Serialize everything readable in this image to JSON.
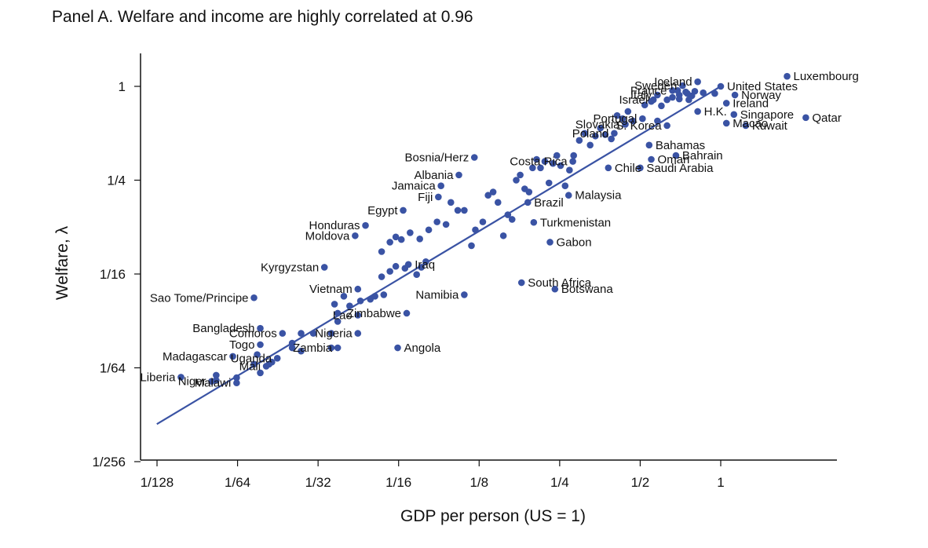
{
  "figure_title": "Panel A. Welfare and income are highly correlated at 0.96",
  "colors": {
    "points": "#3a53a4",
    "fit_line": "#3a53a4",
    "axis": "#111111"
  },
  "chart_data": {
    "type": "scatter",
    "title": "Panel A. Welfare and income are highly correlated at 0.96",
    "xlabel": "GDP per person (US = 1)",
    "ylabel": "Welfare, λ",
    "x_scale": "log2",
    "y_scale": "log2",
    "xlim": [
      0.0069,
      2.6
    ],
    "ylim": [
      0.0039,
      1.5
    ],
    "x_ticks": [
      {
        "value": 0.0078125,
        "label": "1/128"
      },
      {
        "value": 0.015625,
        "label": "1/64"
      },
      {
        "value": 0.03125,
        "label": "1/32"
      },
      {
        "value": 0.0625,
        "label": "1/16"
      },
      {
        "value": 0.125,
        "label": "1/8"
      },
      {
        "value": 0.25,
        "label": "1/4"
      },
      {
        "value": 0.5,
        "label": "1/2"
      },
      {
        "value": 1,
        "label": "1"
      }
    ],
    "y_ticks": [
      {
        "value": 0.00390625,
        "label": "1/256"
      },
      {
        "value": 0.015625,
        "label": "1/64"
      },
      {
        "value": 0.0625,
        "label": "1/16"
      },
      {
        "value": 0.25,
        "label": "1/4"
      },
      {
        "value": 1,
        "label": "1"
      }
    ],
    "fit_line": {
      "x": [
        0.0078,
        1.0
      ],
      "y": [
        0.0068,
        1.0
      ]
    },
    "labeled_points": [
      {
        "label": "Luxembourg",
        "x": 1.77,
        "y": 1.16
      },
      {
        "label": "Iceland",
        "x": 0.82,
        "y": 1.07
      },
      {
        "label": "United States",
        "x": 1.0,
        "y": 1.0
      },
      {
        "label": "Sweden",
        "x": 0.72,
        "y": 1.01
      },
      {
        "label": "France",
        "x": 0.66,
        "y": 0.94
      },
      {
        "label": "Norway",
        "x": 1.13,
        "y": 0.88
      },
      {
        "label": "Italy",
        "x": 0.58,
        "y": 0.88
      },
      {
        "label": "Israel",
        "x": 0.56,
        "y": 0.82
      },
      {
        "label": "Ireland",
        "x": 1.05,
        "y": 0.78
      },
      {
        "label": "H.K.",
        "x": 0.82,
        "y": 0.69
      },
      {
        "label": "Singapore",
        "x": 1.12,
        "y": 0.66
      },
      {
        "label": "Qatar",
        "x": 2.08,
        "y": 0.63
      },
      {
        "label": "Portugal",
        "x": 0.51,
        "y": 0.62
      },
      {
        "label": "Slovakia",
        "x": 0.44,
        "y": 0.57
      },
      {
        "label": "Macao",
        "x": 1.05,
        "y": 0.58
      },
      {
        "label": "Kuwait",
        "x": 1.24,
        "y": 0.56
      },
      {
        "label": "S. Korea",
        "x": 0.63,
        "y": 0.56
      },
      {
        "label": "Poland",
        "x": 0.4,
        "y": 0.5
      },
      {
        "label": "Bahamas",
        "x": 0.54,
        "y": 0.42
      },
      {
        "label": "Costa Rica",
        "x": 0.28,
        "y": 0.33
      },
      {
        "label": "Bosnia/Herz",
        "x": 0.12,
        "y": 0.35
      },
      {
        "label": "Bahrain",
        "x": 0.68,
        "y": 0.36
      },
      {
        "label": "Oman",
        "x": 0.55,
        "y": 0.34
      },
      {
        "label": "Albania",
        "x": 0.105,
        "y": 0.27
      },
      {
        "label": "Chile",
        "x": 0.38,
        "y": 0.3
      },
      {
        "label": "Saudi Arabia",
        "x": 0.5,
        "y": 0.3
      },
      {
        "label": "Jamaica",
        "x": 0.09,
        "y": 0.23
      },
      {
        "label": "Malaysia",
        "x": 0.27,
        "y": 0.2
      },
      {
        "label": "Fiji",
        "x": 0.088,
        "y": 0.195
      },
      {
        "label": "Brazil",
        "x": 0.19,
        "y": 0.18
      },
      {
        "label": "Egypt",
        "x": 0.065,
        "y": 0.16
      },
      {
        "label": "Turkmenistan",
        "x": 0.2,
        "y": 0.134
      },
      {
        "label": "Honduras",
        "x": 0.047,
        "y": 0.128
      },
      {
        "label": "Gabon",
        "x": 0.23,
        "y": 0.1
      },
      {
        "label": "Moldova",
        "x": 0.043,
        "y": 0.11
      },
      {
        "label": "Kyrgyzstan",
        "x": 0.033,
        "y": 0.069
      },
      {
        "label": "Iraq",
        "x": 0.068,
        "y": 0.072
      },
      {
        "label": "South Africa",
        "x": 0.18,
        "y": 0.055
      },
      {
        "label": "Vietnam",
        "x": 0.044,
        "y": 0.05
      },
      {
        "label": "Sao Tome/Principe",
        "x": 0.018,
        "y": 0.044
      },
      {
        "label": "Botswana",
        "x": 0.24,
        "y": 0.05
      },
      {
        "label": "Namibia",
        "x": 0.11,
        "y": 0.046
      },
      {
        "label": "Bangladesh",
        "x": 0.019,
        "y": 0.028
      },
      {
        "label": "Lao",
        "x": 0.044,
        "y": 0.034
      },
      {
        "label": "Zimbabwe",
        "x": 0.067,
        "y": 0.035
      },
      {
        "label": "Comoros",
        "x": 0.023,
        "y": 0.026
      },
      {
        "label": "Nigeria",
        "x": 0.044,
        "y": 0.026
      },
      {
        "label": "Togo",
        "x": 0.019,
        "y": 0.022
      },
      {
        "label": "Angola",
        "x": 0.062,
        "y": 0.021
      },
      {
        "label": "Madagascar",
        "x": 0.015,
        "y": 0.0185
      },
      {
        "label": "Zambia",
        "x": 0.037,
        "y": 0.021
      },
      {
        "label": "Uganda",
        "x": 0.022,
        "y": 0.018
      },
      {
        "label": "Liberia",
        "x": 0.0096,
        "y": 0.0136
      },
      {
        "label": "Mali",
        "x": 0.02,
        "y": 0.016
      },
      {
        "label": "Niger",
        "x": 0.0125,
        "y": 0.0128
      },
      {
        "label": "Malawi",
        "x": 0.0155,
        "y": 0.0125
      }
    ],
    "unlabeled_points": [
      [
        0.013,
        0.014
      ],
      [
        0.013,
        0.013
      ],
      [
        0.0155,
        0.0135
      ],
      [
        0.018,
        0.0165
      ],
      [
        0.019,
        0.0145
      ],
      [
        0.021,
        0.017
      ],
      [
        0.0185,
        0.019
      ],
      [
        0.0205,
        0.0165
      ],
      [
        0.025,
        0.021
      ],
      [
        0.025,
        0.0225
      ],
      [
        0.027,
        0.026
      ],
      [
        0.03,
        0.026
      ],
      [
        0.027,
        0.02
      ],
      [
        0.035,
        0.021
      ],
      [
        0.035,
        0.026
      ],
      [
        0.037,
        0.031
      ],
      [
        0.037,
        0.035
      ],
      [
        0.036,
        0.04
      ],
      [
        0.039,
        0.045
      ],
      [
        0.041,
        0.039
      ],
      [
        0.045,
        0.042
      ],
      [
        0.049,
        0.043
      ],
      [
        0.051,
        0.045
      ],
      [
        0.055,
        0.046
      ],
      [
        0.058,
        0.065
      ],
      [
        0.054,
        0.06
      ],
      [
        0.061,
        0.07
      ],
      [
        0.066,
        0.068
      ],
      [
        0.073,
        0.062
      ],
      [
        0.076,
        0.069
      ],
      [
        0.079,
        0.075
      ],
      [
        0.054,
        0.087
      ],
      [
        0.058,
        0.1
      ],
      [
        0.061,
        0.108
      ],
      [
        0.064,
        0.104
      ],
      [
        0.069,
        0.115
      ],
      [
        0.075,
        0.105
      ],
      [
        0.081,
        0.12
      ],
      [
        0.087,
        0.135
      ],
      [
        0.094,
        0.13
      ],
      [
        0.098,
        0.18
      ],
      [
        0.104,
        0.16
      ],
      [
        0.11,
        0.16
      ],
      [
        0.117,
        0.095
      ],
      [
        0.121,
        0.12
      ],
      [
        0.129,
        0.135
      ],
      [
        0.135,
        0.2
      ],
      [
        0.141,
        0.21
      ],
      [
        0.147,
        0.18
      ],
      [
        0.154,
        0.11
      ],
      [
        0.16,
        0.15
      ],
      [
        0.166,
        0.14
      ],
      [
        0.172,
        0.25
      ],
      [
        0.178,
        0.27
      ],
      [
        0.185,
        0.22
      ],
      [
        0.192,
        0.21
      ],
      [
        0.198,
        0.3
      ],
      [
        0.205,
        0.34
      ],
      [
        0.212,
        0.3
      ],
      [
        0.22,
        0.33
      ],
      [
        0.228,
        0.24
      ],
      [
        0.236,
        0.32
      ],
      [
        0.244,
        0.36
      ],
      [
        0.252,
        0.31
      ],
      [
        0.262,
        0.23
      ],
      [
        0.272,
        0.29
      ],
      [
        0.282,
        0.36
      ],
      [
        0.296,
        0.45
      ],
      [
        0.31,
        0.5
      ],
      [
        0.325,
        0.42
      ],
      [
        0.34,
        0.48
      ],
      [
        0.355,
        0.54
      ],
      [
        0.37,
        0.49
      ],
      [
        0.39,
        0.46
      ],
      [
        0.41,
        0.65
      ],
      [
        0.43,
        0.62
      ],
      [
        0.45,
        0.69
      ],
      [
        0.47,
        0.6
      ],
      [
        0.52,
        0.76
      ],
      [
        0.55,
        0.8
      ],
      [
        0.58,
        0.6
      ],
      [
        0.6,
        0.75
      ],
      [
        0.63,
        0.82
      ],
      [
        0.66,
        0.85
      ],
      [
        0.7,
        0.88
      ],
      [
        0.74,
        0.92
      ],
      [
        0.78,
        0.87
      ],
      [
        0.8,
        0.93
      ],
      [
        0.86,
        0.91
      ],
      [
        0.69,
        0.94
      ],
      [
        0.76,
        0.82
      ],
      [
        0.95,
        0.9
      ],
      [
        0.75,
        0.9
      ],
      [
        0.7,
        0.83
      ]
    ]
  }
}
